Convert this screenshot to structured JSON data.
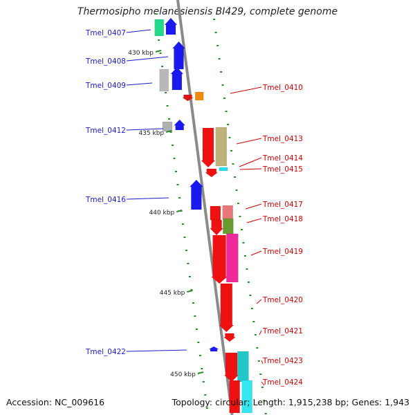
{
  "title": "Thermosipho melanesiensis BI429, complete genome",
  "footer": {
    "accession": "Accession: NC_009616",
    "topology": "Topology: circular; Length: 1,915,238 bp; Genes: 1,943"
  },
  "scale_labels": [
    "430 kbp",
    "435 kbp",
    "440 kbp",
    "445 kbp",
    "450 kbp"
  ],
  "colors": {
    "reverse_label": "#1a1acc",
    "forward_label": "#cc0000",
    "backbone": "#8a8a8a",
    "tick": "#2a8a2a"
  },
  "reverse_labels": [
    "Tmel_0407",
    "Tmel_0408",
    "Tmel_0409",
    "Tmel_0412",
    "Tmel_0416",
    "Tmel_0422"
  ],
  "forward_labels": [
    "Tmel_0410",
    "Tmel_0413",
    "Tmel_0414",
    "Tmel_0415",
    "Tmel_0417",
    "Tmel_0418",
    "Tmel_0419",
    "Tmel_0420",
    "Tmel_0421",
    "Tmel_0423",
    "Tmel_0424"
  ]
}
